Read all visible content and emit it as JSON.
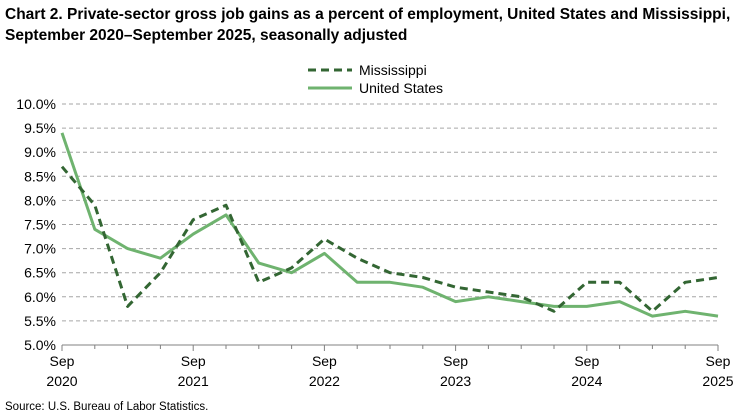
{
  "chart_data": {
    "type": "line",
    "title": "Chart 2. Private-sector gross job gains as a percent of employment, United States and Mississippi, September 2020–September 2025, seasonally adjusted",
    "xlabel": "",
    "ylabel": "",
    "x": [
      "Sep 2020",
      "Dec 2020",
      "Mar 2021",
      "Jun 2021",
      "Sep 2021",
      "Dec 2021",
      "Mar 2022",
      "Jun 2022",
      "Sep 2022",
      "Dec 2022",
      "Mar 2023",
      "Jun 2023",
      "Sep 2023",
      "Dec 2023",
      "Mar 2024",
      "Jun 2024",
      "Sep 2024",
      "Dec 2024",
      "Mar 2025",
      "Jun 2025",
      "Sep 2025"
    ],
    "x_tick_labels": [
      {
        "index": 0,
        "month": "Sep",
        "year": "2020"
      },
      {
        "index": 4,
        "month": "Sep",
        "year": "2021"
      },
      {
        "index": 8,
        "month": "Sep",
        "year": "2022"
      },
      {
        "index": 12,
        "month": "Sep",
        "year": "2023"
      },
      {
        "index": 16,
        "month": "Sep",
        "year": "2024"
      },
      {
        "index": 20,
        "month": "Sep",
        "year": "2025"
      }
    ],
    "ylim": [
      5.0,
      10.0
    ],
    "y_ticks": [
      "5.0%",
      "5.5%",
      "6.0%",
      "6.5%",
      "7.0%",
      "7.5%",
      "8.0%",
      "8.5%",
      "9.0%",
      "9.5%",
      "10.0%"
    ],
    "grid": true,
    "legend_position": "top-center",
    "series": [
      {
        "name": "Mississippi",
        "style": "dashed",
        "color": "#336633",
        "values": [
          8.7,
          7.9,
          5.8,
          6.5,
          7.6,
          7.9,
          6.3,
          6.6,
          7.2,
          6.8,
          6.5,
          6.4,
          6.2,
          6.1,
          6.0,
          5.7,
          6.3,
          6.3,
          5.7,
          6.3,
          6.4
        ]
      },
      {
        "name": "United States",
        "style": "solid",
        "color": "#6fb36f",
        "values": [
          9.4,
          7.4,
          7.0,
          6.8,
          7.3,
          7.7,
          6.7,
          6.5,
          6.9,
          6.3,
          6.3,
          6.2,
          5.9,
          6.0,
          5.9,
          5.8,
          5.8,
          5.9,
          5.6,
          5.7,
          5.6
        ]
      }
    ]
  },
  "source": "Source: U.S. Bureau of Labor Statistics."
}
